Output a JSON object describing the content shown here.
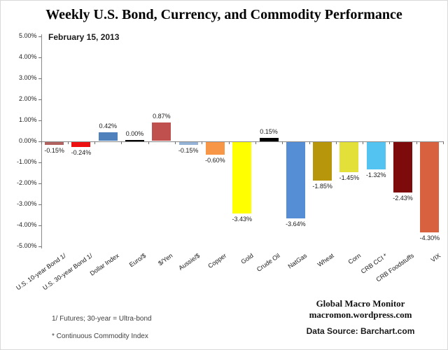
{
  "title": "Weekly U.S. Bond, Currency, and Commodity Performance",
  "subtitle": "February 15, 2013",
  "footnotes": [
    "1/  Futures; 30-year = Ultra-bond",
    "* Continuous Commodity Index"
  ],
  "attribution": {
    "line1": "Global Macro Monitor",
    "line2": "macromon.wordpress.com",
    "line3": "Data Source:  Barchart.com"
  },
  "chart_data": {
    "type": "bar",
    "title": "Weekly U.S. Bond, Currency, and Commodity Performance",
    "subtitle": "February 15, 2013",
    "xlabel": "",
    "ylabel": "",
    "ylim": [
      -5,
      5
    ],
    "grid": false,
    "legend": false,
    "y_ticks": [
      "5.00%",
      "4.00%",
      "3.00%",
      "2.00%",
      "1.00%",
      "0.00%",
      "-1.00%",
      "-2.00%",
      "-3.00%",
      "-4.00%",
      "-5.00%"
    ],
    "categories": [
      "U.S. 10-year Bond 1/",
      "U.S. 30-year Bond 1/",
      "Dollar Index",
      "Euro/$",
      "$/Yen",
      "Aussie/$",
      "Copper",
      "Gold",
      "Crude Oil",
      "NatGas",
      "Wheat",
      "Corn",
      "CRB CCI *",
      "CRB Foodstuffs",
      "VIX"
    ],
    "values": [
      -0.15,
      -0.24,
      0.42,
      0.0,
      0.87,
      -0.15,
      -0.6,
      -3.43,
      0.15,
      -3.64,
      -1.85,
      -1.45,
      -1.32,
      -2.43,
      -4.3
    ],
    "labels": [
      "-0.15%",
      "-0.24%",
      "0.42%",
      "0.00%",
      "0.87%",
      "-0.15%",
      "-0.60%",
      "-3.43%",
      "0.15%",
      "-3.64%",
      "-1.85%",
      "-1.45%",
      "-1.32%",
      "-2.43%",
      "-4.30%"
    ],
    "colors": [
      "#b26360",
      "#ee1111",
      "#4f81bd",
      "#000000",
      "#c0504d",
      "#95b3d7",
      "#f79646",
      "#ffff00",
      "#000000",
      "#558ed5",
      "#b8960c",
      "#e3e03a",
      "#53c3f1",
      "#7d0b0b",
      "#d8613f"
    ],
    "axis_color": "#898989",
    "tick_color": "#6e6e6e"
  }
}
